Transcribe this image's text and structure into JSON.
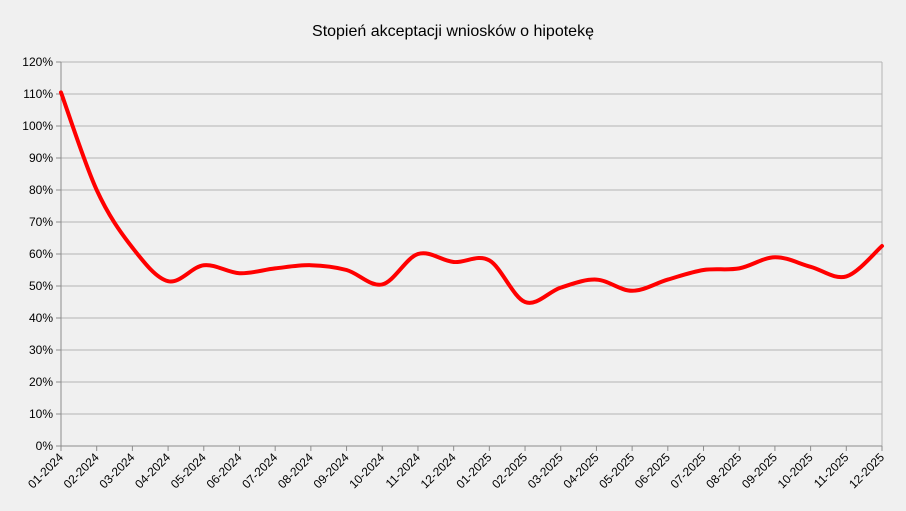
{
  "chart_data": {
    "type": "line",
    "title": "Stopień akceptacji wniosków o hipotekę",
    "xlabel": "",
    "ylabel": "",
    "x": [
      "01-2024",
      "02-2024",
      "03-2024",
      "04-2024",
      "05-2024",
      "06-2024",
      "07-2024",
      "08-2024",
      "09-2024",
      "10-2024",
      "11-2024",
      "12-2024",
      "01-2025",
      "02-2025",
      "03-2025",
      "04-2025",
      "05-2025",
      "06-2025",
      "07-2025",
      "08-2025",
      "09-2025",
      "10-2025",
      "11-2025",
      "12-2025"
    ],
    "yticks": [
      "0%",
      "10%",
      "20%",
      "30%",
      "40%",
      "50%",
      "60%",
      "70%",
      "80%",
      "90%",
      "100%",
      "110%",
      "120%"
    ],
    "ylim": [
      0,
      120
    ],
    "series": [
      {
        "values": [
          110.5,
          80,
          62,
          51.5,
          56.5,
          54,
          55.5,
          56.5,
          55,
          50.5,
          60,
          57.5,
          58,
          45,
          49.5,
          52,
          48.5,
          52,
          55,
          55.5,
          59,
          56,
          53,
          62.5
        ],
        "color": "#ff0000"
      }
    ],
    "grid": true,
    "legend": "none"
  }
}
